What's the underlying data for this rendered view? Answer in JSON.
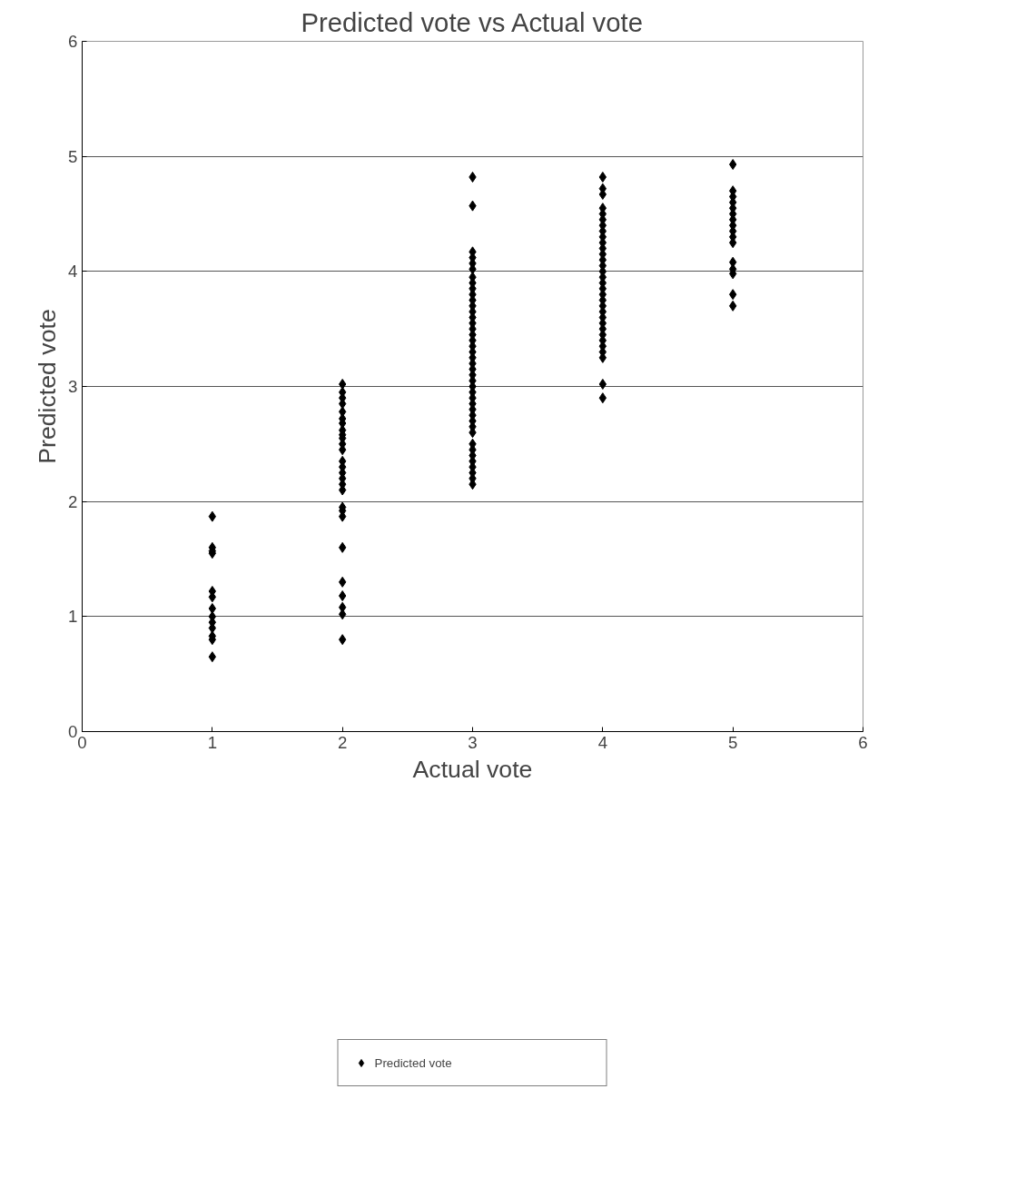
{
  "chart_data": {
    "type": "scatter",
    "title": "Predicted vote vs Actual vote",
    "xlabel": "Actual vote",
    "ylabel": "Predicted vote",
    "xlim": [
      0,
      6
    ],
    "ylim": [
      0,
      6
    ],
    "xticks": [
      0,
      1,
      2,
      3,
      4,
      5,
      6
    ],
    "yticks": [
      0,
      1,
      2,
      3,
      4,
      5,
      6
    ],
    "grid": "y",
    "legend": "bottom",
    "marker": "diamond",
    "series": [
      {
        "name": "Predicted vote",
        "color": "#000000",
        "x": [
          1,
          1,
          1,
          1,
          1,
          1,
          1,
          1,
          1,
          1,
          1,
          1,
          1,
          2,
          2,
          2,
          2,
          2,
          2,
          2,
          2,
          2,
          2,
          2,
          2,
          2,
          2,
          2,
          2,
          2,
          2,
          2,
          2,
          2,
          2,
          2,
          2,
          2,
          2,
          2,
          3,
          3,
          3,
          3,
          3,
          3,
          3,
          3,
          3,
          3,
          3,
          3,
          3,
          3,
          3,
          3,
          3,
          3,
          3,
          3,
          3,
          3,
          3,
          3,
          3,
          3,
          3,
          3,
          3,
          3,
          3,
          3,
          3,
          3,
          3,
          3,
          3,
          3,
          3,
          3,
          3,
          3,
          4,
          4,
          4,
          4,
          4,
          4,
          4,
          4,
          4,
          4,
          4,
          4,
          4,
          4,
          4,
          4,
          4,
          4,
          4,
          4,
          4,
          4,
          4,
          4,
          4,
          4,
          4,
          4,
          4,
          4,
          4,
          4,
          5,
          5,
          5,
          5,
          5,
          5,
          5,
          5,
          5,
          5,
          5,
          5,
          5,
          5,
          5,
          5
        ],
        "values": [
          1.87,
          1.6,
          1.57,
          1.55,
          1.22,
          1.17,
          1.07,
          1.0,
          0.95,
          0.9,
          0.83,
          0.8,
          0.65,
          3.02,
          2.95,
          2.9,
          2.85,
          2.78,
          2.72,
          2.68,
          2.62,
          2.58,
          2.55,
          2.5,
          2.45,
          2.35,
          2.3,
          2.25,
          2.2,
          2.15,
          2.1,
          1.95,
          1.92,
          1.87,
          1.6,
          1.3,
          1.18,
          1.08,
          1.02,
          0.8,
          4.82,
          4.57,
          4.17,
          4.12,
          4.07,
          4.02,
          3.95,
          3.9,
          3.85,
          3.8,
          3.75,
          3.7,
          3.65,
          3.6,
          3.55,
          3.5,
          3.45,
          3.4,
          3.35,
          3.3,
          3.25,
          3.2,
          3.15,
          3.1,
          3.05,
          3.0,
          2.95,
          2.9,
          2.85,
          2.8,
          2.75,
          2.7,
          2.65,
          2.6,
          2.5,
          2.45,
          2.4,
          2.35,
          2.3,
          2.25,
          2.2,
          2.15,
          4.82,
          4.72,
          4.67,
          4.55,
          4.5,
          4.45,
          4.4,
          4.35,
          4.3,
          4.25,
          4.2,
          4.15,
          4.1,
          4.05,
          4.0,
          3.95,
          3.9,
          3.85,
          3.8,
          3.75,
          3.7,
          3.65,
          3.6,
          3.55,
          3.5,
          3.45,
          3.4,
          3.35,
          3.3,
          3.25,
          3.02,
          2.9,
          4.93,
          4.7,
          4.65,
          4.6,
          4.55,
          4.5,
          4.45,
          4.4,
          4.35,
          4.3,
          4.25,
          4.08,
          4.02,
          3.98,
          3.8,
          3.7
        ]
      }
    ]
  }
}
